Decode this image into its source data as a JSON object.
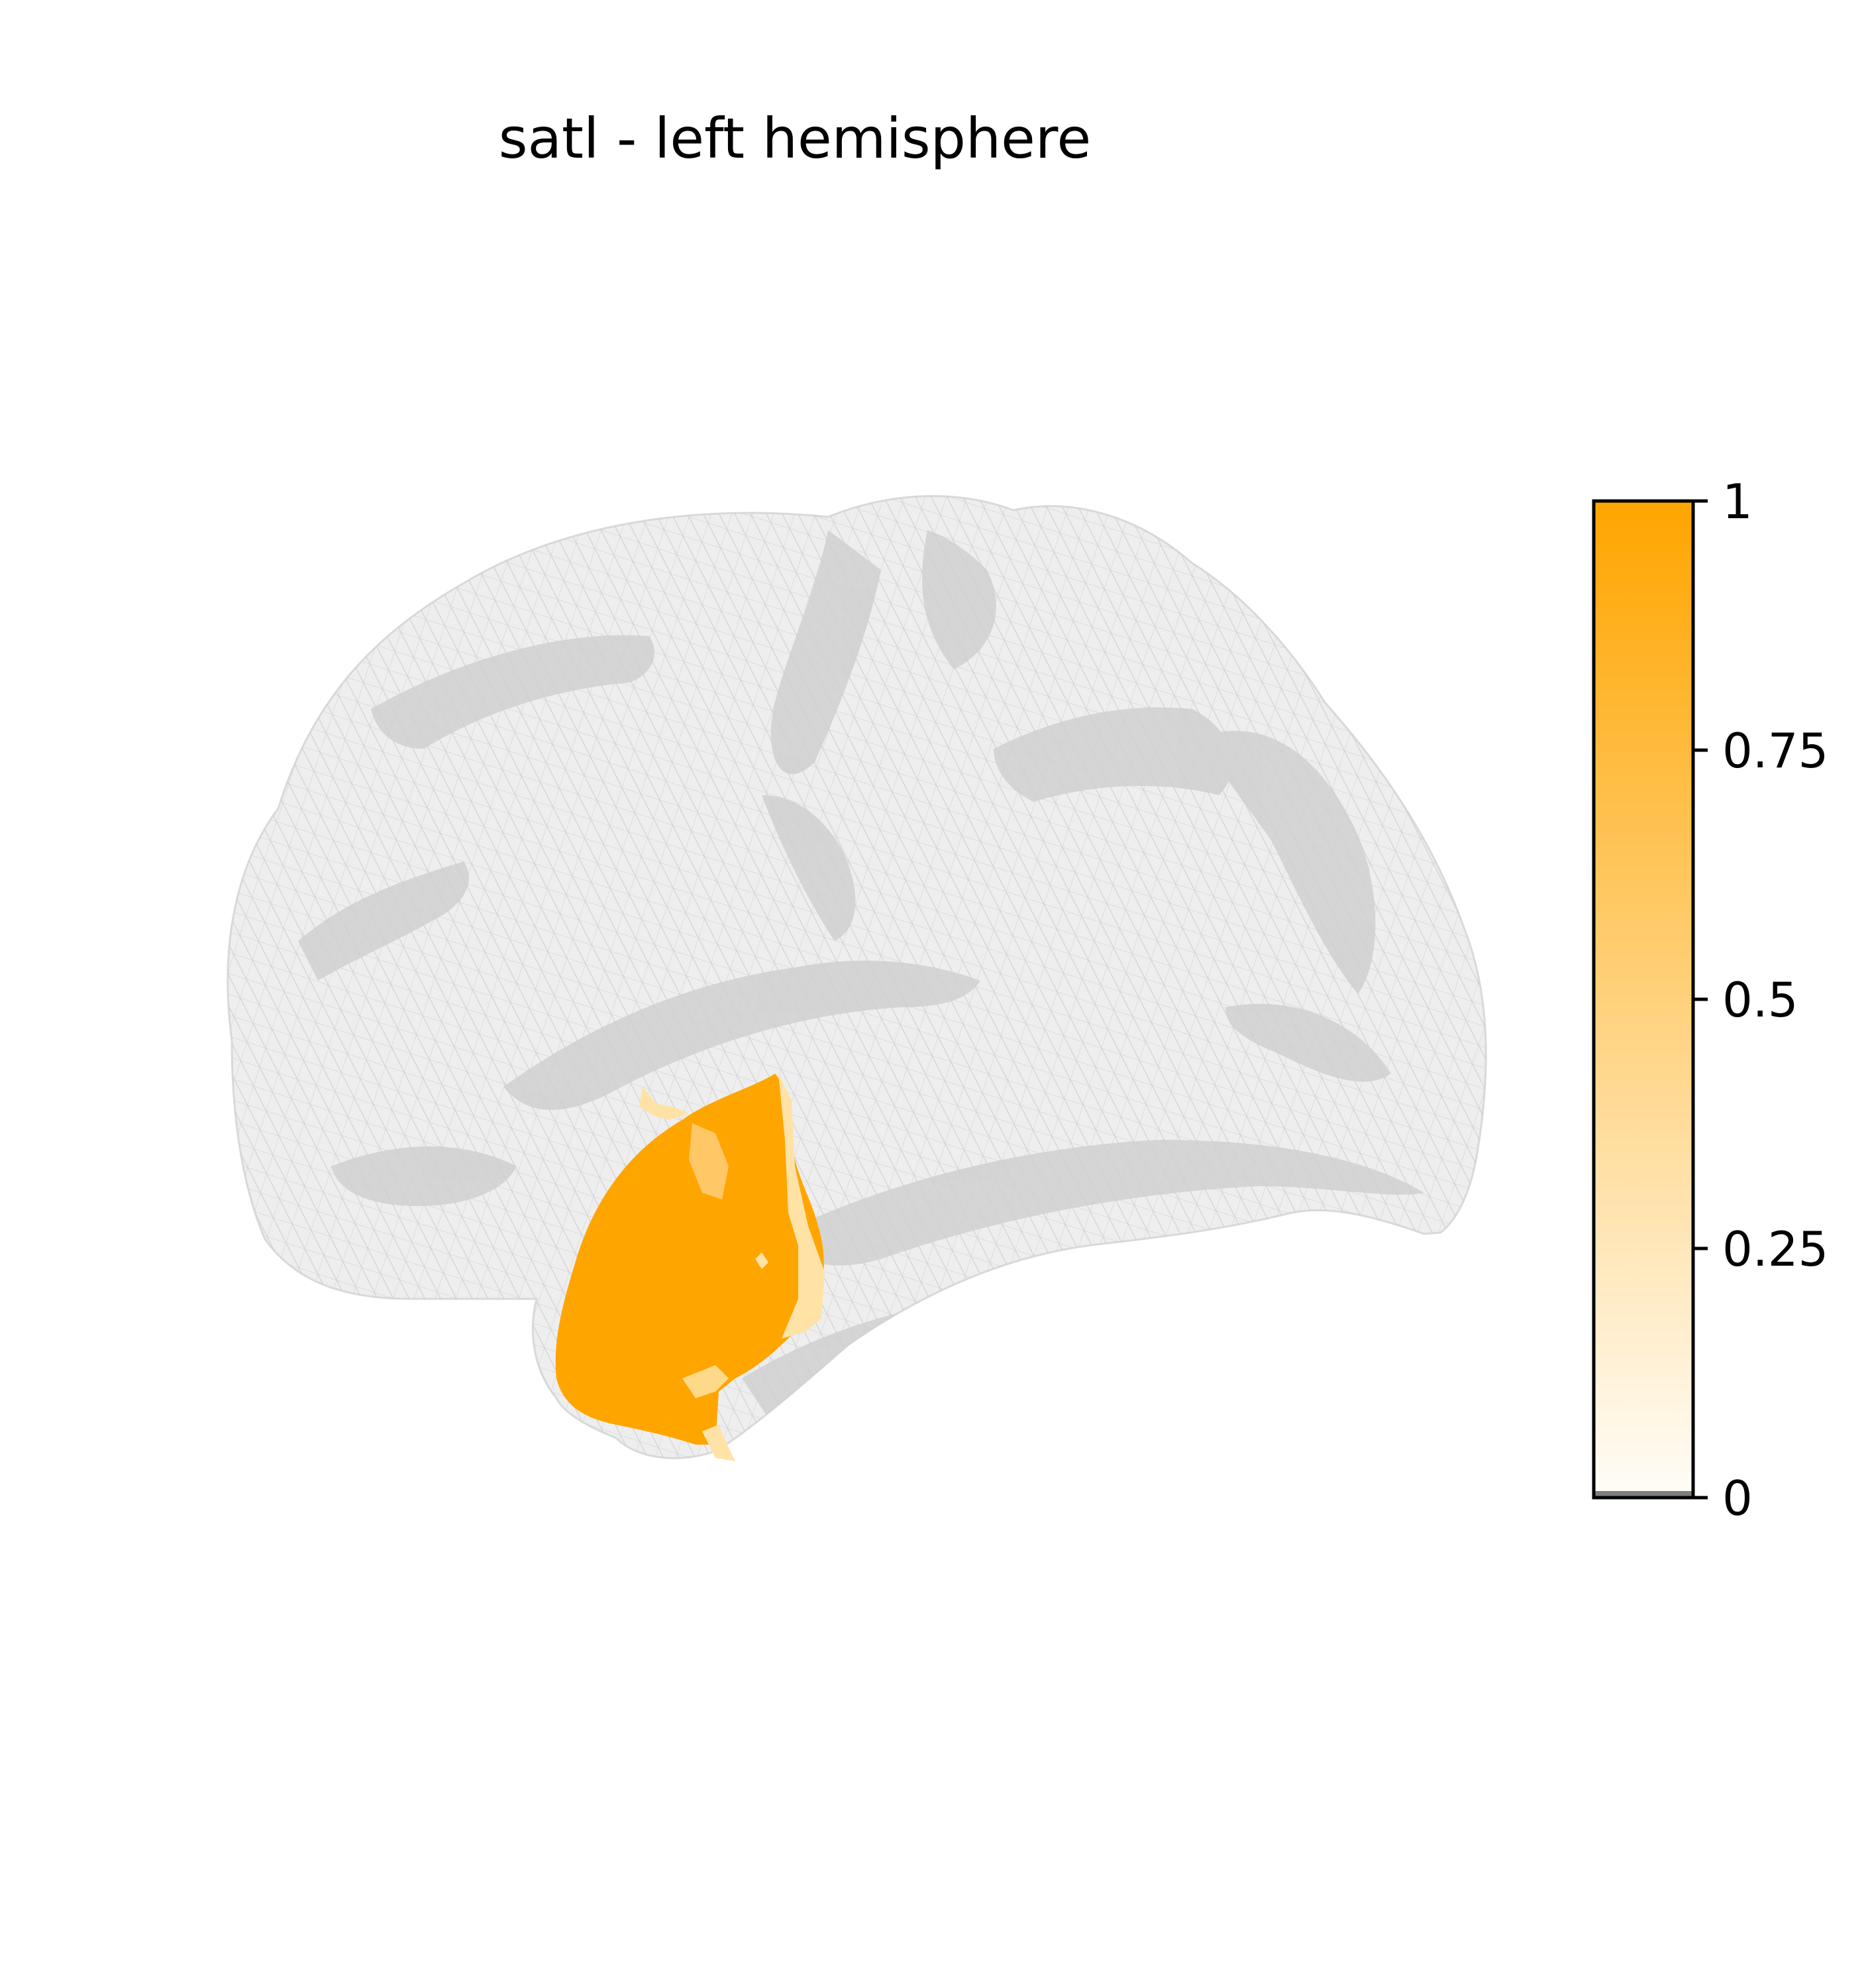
{
  "title": "satl - left hemisphere",
  "colors": {
    "background": "#ffffff",
    "surface": "#e6e6e6",
    "mesh_line": "#c8c8c8",
    "sulcus": "#cfcfcf",
    "roi_max": "#ffa500",
    "roi_min": "#fffdf8",
    "below_range": "#7f7f7f"
  },
  "colorbar": {
    "min": 0,
    "max": 1,
    "ticks": [
      {
        "value": 1,
        "label": "1"
      },
      {
        "value": 0.75,
        "label": "0.75"
      },
      {
        "value": 0.5,
        "label": "0.5"
      },
      {
        "value": 0.25,
        "label": "0.25"
      },
      {
        "value": 0,
        "label": "0"
      }
    ]
  }
}
